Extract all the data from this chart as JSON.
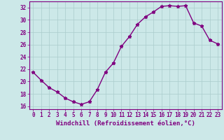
{
  "x": [
    0,
    1,
    2,
    3,
    4,
    5,
    6,
    7,
    8,
    9,
    10,
    11,
    12,
    13,
    14,
    15,
    16,
    17,
    18,
    19,
    20,
    21,
    22,
    23
  ],
  "y": [
    21.5,
    20.2,
    19.0,
    18.3,
    17.3,
    16.7,
    16.3,
    16.7,
    18.7,
    21.5,
    23.0,
    25.7,
    27.3,
    29.3,
    30.5,
    31.3,
    32.2,
    32.3,
    32.2,
    32.3,
    29.5,
    29.0,
    26.7,
    26.1
  ],
  "line_color": "#800080",
  "marker": "*",
  "bg_color": "#cce8e8",
  "grid_color": "#aacccc",
  "xlabel": "Windchill (Refroidissement éolien,°C)",
  "xlim": [
    -0.5,
    23.5
  ],
  "ylim": [
    15.5,
    33.0
  ],
  "yticks": [
    16,
    18,
    20,
    22,
    24,
    26,
    28,
    30,
    32
  ],
  "xticks": [
    0,
    1,
    2,
    3,
    4,
    5,
    6,
    7,
    8,
    9,
    10,
    11,
    12,
    13,
    14,
    15,
    16,
    17,
    18,
    19,
    20,
    21,
    22,
    23
  ],
  "tick_label_fontsize": 5.5,
  "xlabel_fontsize": 6.5,
  "line_width": 1.0,
  "marker_size": 3.5
}
